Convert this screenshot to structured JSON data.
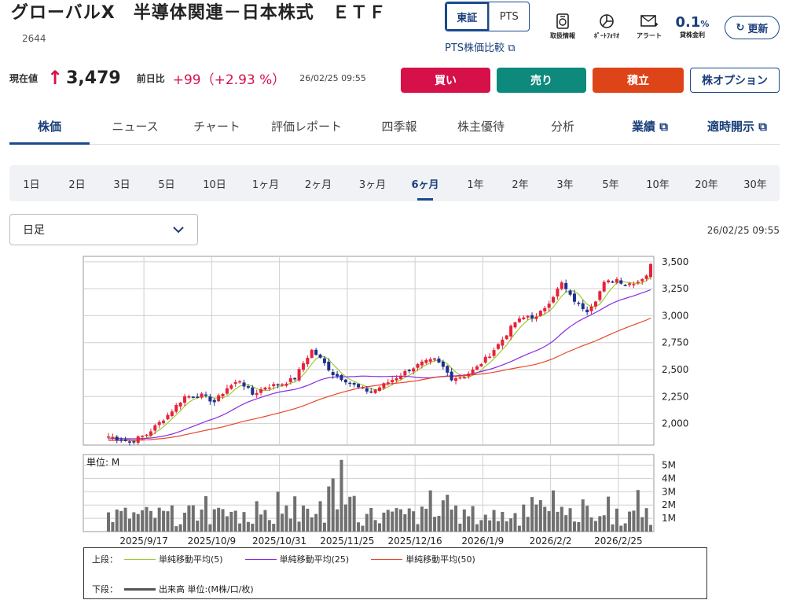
{
  "header": {
    "title": "グローバルX　半導体関連－日本株式　ＥＴＦ",
    "code": "2644",
    "market_on": "東証",
    "market_off": "PTS",
    "pts_link": "PTS株価比較",
    "icons": [
      {
        "name": "torihiki-icon",
        "label": "取扱情報"
      },
      {
        "name": "portfolio-icon",
        "label": "ﾎﾟｰﾄﾌｫﾘｵ"
      },
      {
        "name": "alert-icon",
        "label": "アラート"
      }
    ],
    "margin_rate_value": "0.1",
    "margin_rate_unit": "%",
    "margin_rate_label": "貸株金利",
    "refresh": "更新"
  },
  "quote": {
    "current_label": "現在値",
    "arrow": "↑",
    "price": "3,479",
    "prev_label": "前日比",
    "change": "+99（+2.93 %）",
    "timestamp": "26/02/25 09:55"
  },
  "actions": {
    "buy": "買い",
    "sell": "売り",
    "accumulate": "積立",
    "options": "株オプション"
  },
  "nav": [
    "株価",
    "ニュース",
    "チャート",
    "評価レポート",
    "四季報",
    "株主優待",
    "分析",
    "業績",
    "適時開示"
  ],
  "periods": [
    "1日",
    "2日",
    "3日",
    "5日",
    "10日",
    "1ヶ月",
    "2ヶ月",
    "3ヶ月",
    "6ヶ月",
    "1年",
    "2年",
    "3年",
    "5年",
    "10年",
    "20年",
    "30年"
  ],
  "period_active": "6ヶ月",
  "select_value": "日足",
  "chart_timestamp": "26/02/25 09:55",
  "colors": {
    "up": "#e8213a",
    "down": "#1f2f8f",
    "ma5": "#9acd32",
    "ma25": "#8a2be2",
    "ma50": "#e8472a",
    "volume": "#707070",
    "brand": "#1a3f7a"
  },
  "chart_data": {
    "type": "candlestick",
    "x_ticks": [
      "2025/9/17",
      "2025/10/9",
      "2025/10/31",
      "2025/11/25",
      "2025/12/16",
      "2026/1/9",
      "2026/2/2",
      "2026/2/25"
    ],
    "y_ticks": [
      "3,500",
      "3,250",
      "3,000",
      "2,750",
      "2,500",
      "2,250",
      "2,000"
    ],
    "ylim": [
      1800,
      3550
    ],
    "close_path": [
      [
        0,
        1880
      ],
      [
        5,
        1830
      ],
      [
        9,
        1900
      ],
      [
        14,
        2080
      ],
      [
        18,
        2250
      ],
      [
        22,
        2260
      ],
      [
        25,
        2200
      ],
      [
        28,
        2330
      ],
      [
        31,
        2400
      ],
      [
        34,
        2270
      ],
      [
        37,
        2340
      ],
      [
        41,
        2370
      ],
      [
        44,
        2420
      ],
      [
        46,
        2560
      ],
      [
        48,
        2680
      ],
      [
        50,
        2600
      ],
      [
        53,
        2460
      ],
      [
        56,
        2400
      ],
      [
        59,
        2330
      ],
      [
        62,
        2290
      ],
      [
        65,
        2360
      ],
      [
        68,
        2430
      ],
      [
        71,
        2500
      ],
      [
        74,
        2560
      ],
      [
        77,
        2590
      ],
      [
        79,
        2520
      ],
      [
        81,
        2420
      ],
      [
        84,
        2440
      ],
      [
        87,
        2520
      ],
      [
        90,
        2640
      ],
      [
        93,
        2780
      ],
      [
        96,
        2940
      ],
      [
        99,
        3000
      ],
      [
        101,
        2980
      ],
      [
        104,
        3130
      ],
      [
        107,
        3300
      ],
      [
        109,
        3180
      ],
      [
        111,
        3100
      ],
      [
        113,
        3050
      ],
      [
        115,
        3150
      ],
      [
        117,
        3300
      ],
      [
        120,
        3340
      ],
      [
        122,
        3290
      ],
      [
        125,
        3320
      ],
      [
        127,
        3380
      ],
      [
        128,
        3470
      ]
    ],
    "moving_averages": [
      {
        "name": "単純移動平均(5)",
        "window": 5
      },
      {
        "name": "単純移動平均(25)",
        "window": 25
      },
      {
        "name": "単純移動平均(50)",
        "window": 50
      }
    ],
    "volume_unit_label": "単位: M",
    "volume_ticks": [
      "5M",
      "4M",
      "3M",
      "2M",
      "1M"
    ],
    "volume_ylim": [
      0,
      5.8
    ],
    "volume_note": "出来高 単位:(M株/口/枚)",
    "legend_top_label": "上段：",
    "legend_bottom_label": "下段："
  }
}
